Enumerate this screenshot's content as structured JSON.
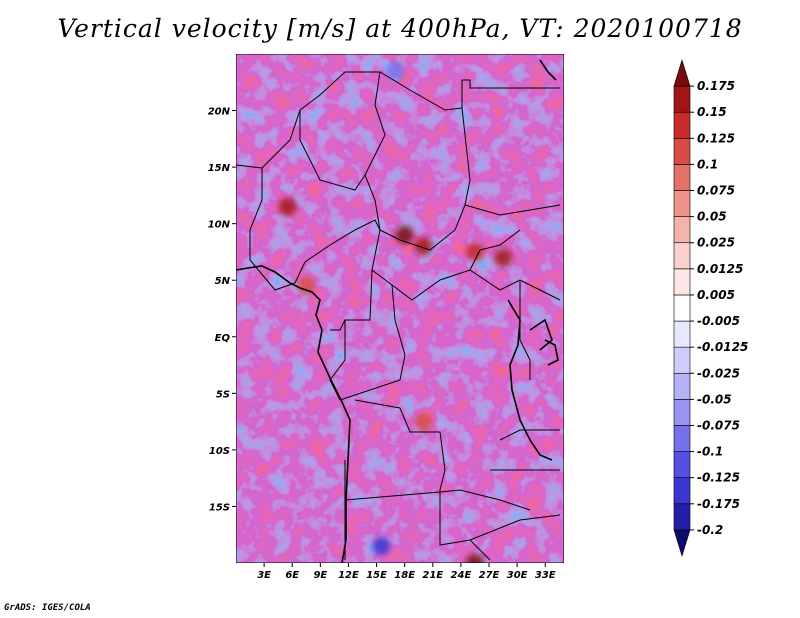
{
  "chart_data": {
    "type": "heatmap",
    "title": "Vertical velocity [m/s] at 400hPa, VT: 2020100718",
    "variable": "Vertical velocity",
    "units": "m/s",
    "level": "400hPa",
    "valid_time": "2020100718",
    "lon_range": [
      0,
      35
    ],
    "lat_range": [
      -20,
      25
    ],
    "x_ticks": [
      {
        "value": 3,
        "label": "3E"
      },
      {
        "value": 6,
        "label": "6E"
      },
      {
        "value": 9,
        "label": "9E"
      },
      {
        "value": 12,
        "label": "12E"
      },
      {
        "value": 15,
        "label": "15E"
      },
      {
        "value": 18,
        "label": "18E"
      },
      {
        "value": 21,
        "label": "21E"
      },
      {
        "value": 24,
        "label": "24E"
      },
      {
        "value": 27,
        "label": "27E"
      },
      {
        "value": 30,
        "label": "30E"
      },
      {
        "value": 33,
        "label": "33E"
      }
    ],
    "y_ticks": [
      {
        "value": 20,
        "label": "20N"
      },
      {
        "value": 15,
        "label": "15N"
      },
      {
        "value": 10,
        "label": "10N"
      },
      {
        "value": 5,
        "label": "5N"
      },
      {
        "value": 0,
        "label": "EQ"
      },
      {
        "value": -5,
        "label": "5S"
      },
      {
        "value": -10,
        "label": "10S"
      },
      {
        "value": -15,
        "label": "15S"
      }
    ],
    "colorbar": {
      "colors": [
        "#0c0b6e",
        "#2220a8",
        "#3a37d2",
        "#5451e2",
        "#7572ec",
        "#9794f2",
        "#b5b3f7",
        "#cfcefa",
        "#e7e7fd",
        "#ffffff",
        "#fde6e5",
        "#fad0cd",
        "#f5b3ae",
        "#ee928b",
        "#e57068",
        "#d94c45",
        "#c52b27",
        "#a31414",
        "#7a0b0b"
      ],
      "labels": [
        "-0.2",
        "-0.175",
        "-0.125",
        "-0.1",
        "-0.075",
        "-0.05",
        "-0.025",
        "-0.0125",
        "-0.005",
        "0.005",
        "0.0125",
        "0.025",
        "0.05",
        "0.075",
        "0.1",
        "0.125",
        "0.15",
        "0.175"
      ]
    },
    "hotspots": [
      {
        "lon": 5.5,
        "lat": 11.5,
        "value": 0.15
      },
      {
        "lon": 18.0,
        "lat": 9.0,
        "value": 0.175
      },
      {
        "lon": 20.0,
        "lat": 8.0,
        "value": 0.15
      },
      {
        "lon": 25.5,
        "lat": 7.5,
        "value": 0.125
      },
      {
        "lon": 28.5,
        "lat": 7.0,
        "value": 0.15
      },
      {
        "lon": 7.5,
        "lat": 4.5,
        "value": 0.1
      },
      {
        "lon": 25.5,
        "lat": -20.0,
        "value": 0.175
      },
      {
        "lon": 15.5,
        "lat": -18.5,
        "value": -0.15
      },
      {
        "lon": 20.0,
        "lat": -7.5,
        "value": 0.1
      },
      {
        "lon": 17.0,
        "lat": 23.5,
        "value": -0.1
      }
    ],
    "grid": false,
    "legend": "right"
  },
  "footer": "GrADS: IGES/COLA"
}
